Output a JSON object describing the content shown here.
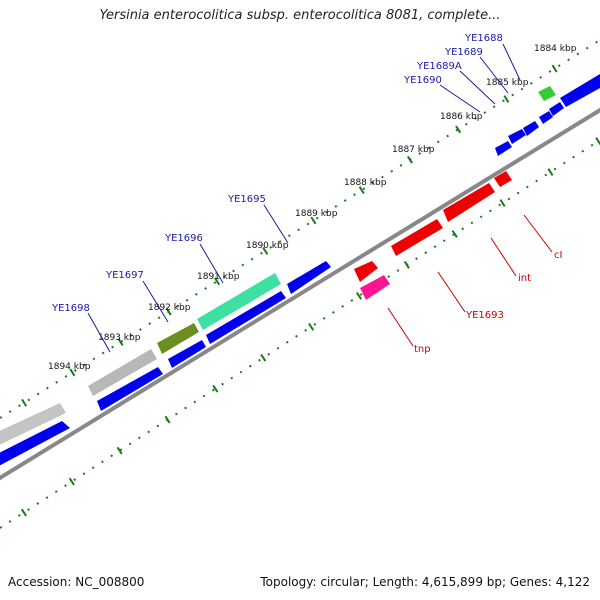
{
  "title": "Yersinia enterocolitica subsp. enterocolitica 8081, complete...",
  "footer": {
    "accession": "Accession: NC_008800",
    "summary": "Topology: circular; Length: 4,615,899 bp; Genes: 4,122"
  },
  "colors": {
    "forward_gene": "#0000ee",
    "reverse_gene": "#ee0000",
    "label_forward": "#1a1aa8",
    "label_reverse": "#cc0000",
    "tick": "#1a7a1a",
    "backbone": "#888888"
  },
  "kbp_labels": [
    "1884 kbp",
    "1885 kbp",
    "1886 kbp",
    "1887 kbp",
    "1888 kbp",
    "1889 kbp",
    "1890 kbp",
    "1891 kbp",
    "1892 kbp",
    "1893 kbp",
    "1894 kbp"
  ],
  "gene_labels_forward": [
    "YE1688",
    "YE1689",
    "YE1689A",
    "YE1690",
    "YE1695",
    "YE1696",
    "YE1697",
    "YE1698"
  ],
  "gene_labels_reverse": [
    "cI",
    "int",
    "YE1693",
    "tnp"
  ]
}
